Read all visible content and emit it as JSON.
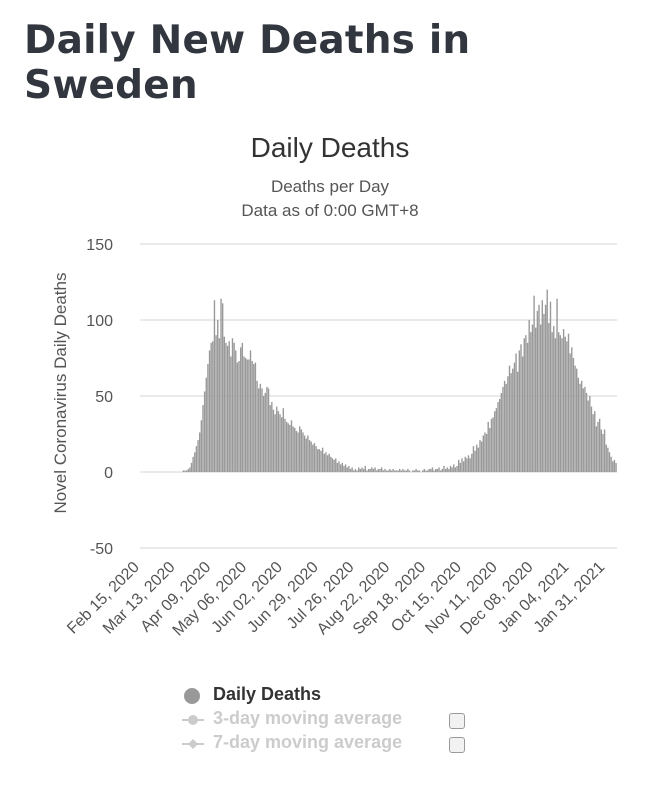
{
  "page": {
    "title": "Daily New Deaths in Sweden"
  },
  "chart_data": {
    "type": "bar",
    "title": "Daily Deaths",
    "subtitles": [
      "Deaths per Day",
      "Data as of 0:00 GMT+8"
    ],
    "ylabel": "Novel Coronavirus Daily Deaths",
    "xlabel": "",
    "ylim": [
      -50,
      150
    ],
    "yticks": [
      150,
      100,
      50,
      0,
      -50
    ],
    "grid": true,
    "x_tick_labels": [
      "Feb 15, 2020",
      "Mar 13, 2020",
      "Apr 09, 2020",
      "May 06, 2020",
      "Jun 02, 2020",
      "Jun 29, 2020",
      "Jul 26, 2020",
      "Aug 22, 2020",
      "Sep 18, 2020",
      "Oct 15, 2020",
      "Nov 11, 2020",
      "Dec 08, 2020",
      "Jan 04, 2021",
      "Jan 31, 2021"
    ],
    "series": [
      {
        "name": "Daily Deaths",
        "color": "#999999",
        "start_date": "2020-02-15",
        "values": [
          0,
          0,
          0,
          0,
          0,
          0,
          0,
          0,
          0,
          0,
          0,
          0,
          0,
          0,
          0,
          0,
          0,
          0,
          0,
          0,
          0,
          0,
          0,
          0,
          0,
          0,
          1,
          1,
          1,
          2,
          3,
          6,
          10,
          13,
          17,
          21,
          26,
          34,
          44,
          53,
          62,
          71,
          80,
          85,
          86,
          113,
          90,
          100,
          88,
          114,
          111,
          89,
          85,
          83,
          86,
          76,
          88,
          85,
          80,
          72,
          73,
          82,
          85,
          76,
          75,
          74,
          74,
          80,
          73,
          71,
          72,
          60,
          55,
          58,
          55,
          50,
          52,
          56,
          55,
          44,
          46,
          41,
          38,
          43,
          40,
          38,
          36,
          42,
          35,
          33,
          32,
          31,
          34,
          30,
          29,
          27,
          26,
          30,
          28,
          26,
          24,
          22,
          24,
          21,
          20,
          18,
          19,
          17,
          15,
          15,
          14,
          16,
          12,
          13,
          11,
          12,
          10,
          9,
          8,
          9,
          6,
          7,
          5,
          6,
          4,
          5,
          3,
          4,
          2,
          3,
          1,
          2,
          1,
          3,
          2,
          3,
          2,
          4,
          1,
          2,
          2,
          3,
          2,
          3,
          1,
          2,
          2,
          3,
          1,
          2,
          1,
          1,
          2,
          1,
          2,
          1,
          1,
          1,
          2,
          1,
          2,
          1,
          1,
          2,
          1,
          0,
          1,
          1,
          2,
          1,
          1,
          0,
          1,
          2,
          1,
          1,
          2,
          2,
          3,
          1,
          2,
          2,
          3,
          1,
          2,
          4,
          2,
          3,
          2,
          4,
          3,
          5,
          3,
          4,
          8,
          6,
          9,
          7,
          10,
          9,
          11,
          9,
          12,
          17,
          14,
          18,
          16,
          21,
          20,
          24,
          26,
          25,
          33,
          29,
          35,
          36,
          40,
          42,
          46,
          48,
          52,
          56,
          60,
          58,
          63,
          70,
          65,
          68,
          72,
          78,
          66,
          80,
          84,
          76,
          88,
          90,
          85,
          100,
          92,
          97,
          116,
          95,
          106,
          110,
          97,
          113,
          104,
          110,
          120,
          98,
          112,
          92,
          96,
          88,
          114,
          92,
          90,
          88,
          94,
          89,
          86,
          91,
          78,
          82,
          75,
          70,
          68,
          62,
          58,
          60,
          55,
          56,
          52,
          47,
          50,
          43,
          38,
          40,
          30,
          33,
          35,
          28,
          25,
          28,
          18,
          16,
          13,
          10,
          7,
          8,
          6
        ]
      },
      {
        "name": "3-day moving average",
        "visible": false
      },
      {
        "name": "7-day moving average",
        "visible": false
      }
    ],
    "legend": [
      {
        "label": "Daily Deaths",
        "active": true,
        "color": "#999999"
      },
      {
        "label": "3-day moving average",
        "active": false,
        "color": "#cccccc"
      },
      {
        "label": "7-day moving average",
        "active": false,
        "color": "#cccccc"
      }
    ]
  }
}
